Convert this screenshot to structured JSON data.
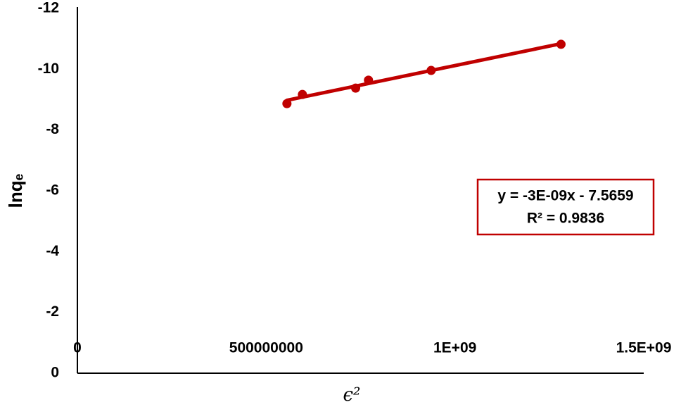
{
  "chart_data": {
    "type": "scatter",
    "xlabel": "ϵ²",
    "ylabel": "lnqₑ",
    "series": [
      {
        "name": "lnqe",
        "color": "#c00000",
        "x": [
          555000000,
          596000000,
          737000000,
          771000000,
          937000000,
          1281000000
        ],
        "values": [
          -8.87,
          -9.17,
          -9.38,
          -9.64,
          -9.96,
          -10.82
        ]
      }
    ],
    "trendline": true,
    "equation": [
      "y = -3E-09x - 7.5659",
      "R² = 0.9836"
    ],
    "xlim": [
      0,
      1500000000
    ],
    "xticks": [
      0,
      500000000,
      {
        "value": 1000000000,
        "label": "1E+09"
      },
      {
        "value": 1500000000,
        "label": "1.5E+09"
      }
    ],
    "ylim": [
      0,
      -12
    ],
    "yticks": [
      0,
      -2,
      -4,
      -6,
      -8,
      -10,
      -12
    ],
    "grid": false
  }
}
